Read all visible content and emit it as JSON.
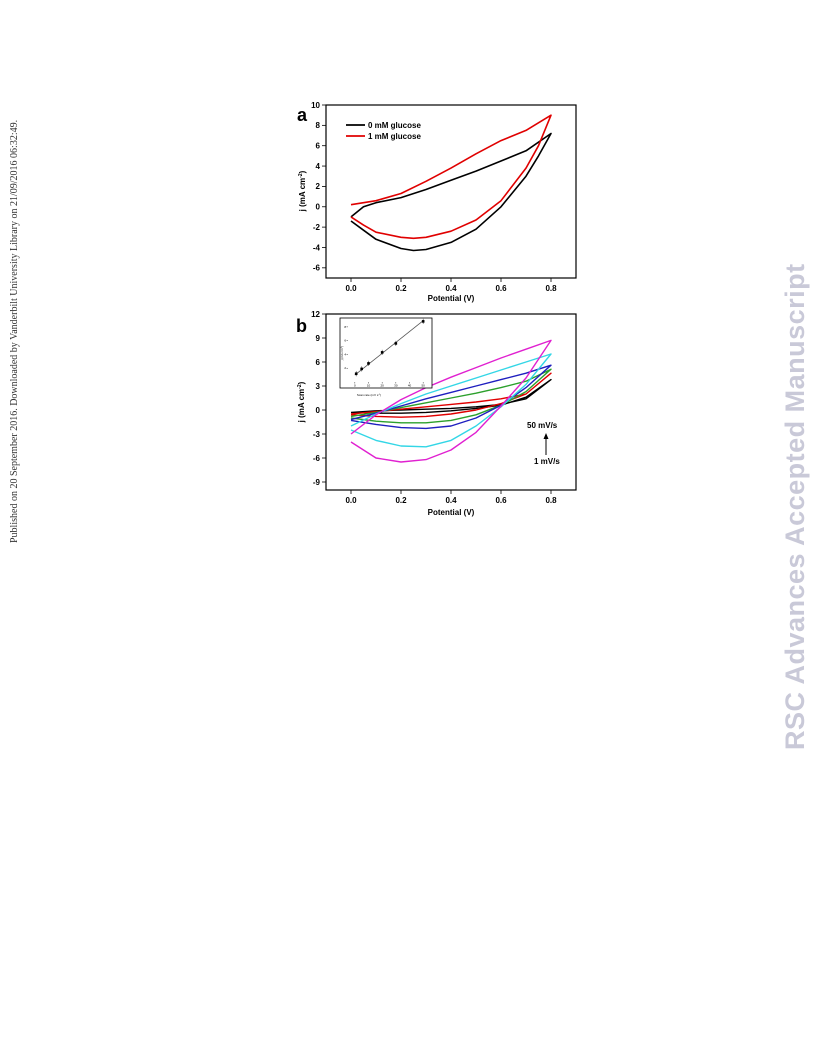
{
  "side_note": "Published on 20 September 2016. Downloaded by Vanderbilt University Library on 21/09/2016 06:32:49.",
  "watermark": "RSC Advances Accepted Manuscript",
  "chart_data": [
    {
      "panel": "a",
      "type": "line",
      "xlabel": "Potential (V)",
      "ylabel": "j (mA cm",
      "ylabel_sup": "-2",
      "ylabel_end": ")",
      "xlim": [
        -0.1,
        0.9
      ],
      "ylim": [
        -7,
        10
      ],
      "xticks": [
        "0.0",
        "0.2",
        "0.4",
        "0.6",
        "0.8"
      ],
      "xtick_values": [
        0.0,
        0.2,
        0.4,
        0.6,
        0.8
      ],
      "yticks": [
        "10",
        "8",
        "6",
        "4",
        "2",
        "0",
        "-2",
        "-4",
        "-6"
      ],
      "ytick_values": [
        10,
        8,
        6,
        4,
        2,
        0,
        -2,
        -4,
        -6
      ],
      "legend_position": "top-left",
      "series": [
        {
          "name": "0 mM glucose",
          "color": "#000000",
          "x": [
            0.0,
            0.05,
            0.1,
            0.2,
            0.3,
            0.4,
            0.5,
            0.6,
            0.7,
            0.8,
            0.8,
            0.75,
            0.7,
            0.6,
            0.5,
            0.4,
            0.3,
            0.25,
            0.2,
            0.1,
            0.05,
            0.0
          ],
          "y": [
            -1.0,
            0.0,
            0.4,
            0.9,
            1.7,
            2.6,
            3.5,
            4.5,
            5.5,
            7.2,
            7.2,
            5.0,
            3.0,
            0.0,
            -2.2,
            -3.5,
            -4.2,
            -4.3,
            -4.1,
            -3.2,
            -2.3,
            -1.4
          ]
        },
        {
          "name": "1 mM glucose",
          "color": "#e00000",
          "x": [
            0.0,
            0.05,
            0.1,
            0.2,
            0.3,
            0.4,
            0.5,
            0.6,
            0.7,
            0.8,
            0.8,
            0.75,
            0.7,
            0.6,
            0.5,
            0.4,
            0.3,
            0.25,
            0.2,
            0.1,
            0.05,
            0.0
          ],
          "y": [
            0.2,
            0.4,
            0.6,
            1.3,
            2.5,
            3.8,
            5.2,
            6.5,
            7.5,
            9.0,
            9.0,
            6.0,
            3.8,
            0.6,
            -1.3,
            -2.4,
            -3.0,
            -3.1,
            -3.0,
            -2.5,
            -1.8,
            -1.0
          ]
        }
      ]
    },
    {
      "panel": "b",
      "type": "line",
      "xlabel": "Potential (V)",
      "ylabel": "j (mA cm",
      "ylabel_sup": "-2",
      "ylabel_end": ")",
      "xlim": [
        -0.1,
        0.9
      ],
      "ylim": [
        -10,
        12
      ],
      "xticks": [
        "0.0",
        "0.2",
        "0.4",
        "0.6",
        "0.8"
      ],
      "xtick_values": [
        0.0,
        0.2,
        0.4,
        0.6,
        0.8
      ],
      "yticks": [
        "12",
        "9",
        "6",
        "3",
        "0",
        "-3",
        "-6",
        "-9"
      ],
      "ytick_values": [
        12,
        9,
        6,
        3,
        0,
        -3,
        -6,
        -9
      ],
      "annotation_top": "50 mV/s",
      "annotation_bottom": "1 mV/s",
      "series": [
        {
          "color": "#000000",
          "x": [
            0.0,
            0.1,
            0.2,
            0.3,
            0.4,
            0.5,
            0.6,
            0.7,
            0.8,
            0.8,
            0.7,
            0.6,
            0.5,
            0.4,
            0.3,
            0.2,
            0.1,
            0.0
          ],
          "y": [
            -0.3,
            -0.1,
            0.0,
            0.1,
            0.2,
            0.4,
            0.7,
            1.4,
            3.8,
            3.8,
            1.6,
            0.6,
            0.2,
            -0.1,
            -0.3,
            -0.4,
            -0.4,
            -0.3
          ]
        },
        {
          "color": "#e00000",
          "x": [
            0.0,
            0.1,
            0.2,
            0.3,
            0.4,
            0.5,
            0.6,
            0.7,
            0.8,
            0.8,
            0.7,
            0.6,
            0.5,
            0.4,
            0.3,
            0.2,
            0.1,
            0.0
          ],
          "y": [
            -0.5,
            -0.2,
            0.1,
            0.4,
            0.7,
            1.0,
            1.4,
            2.0,
            4.6,
            4.6,
            2.0,
            0.8,
            0.0,
            -0.5,
            -0.8,
            -0.9,
            -0.8,
            -0.6
          ]
        },
        {
          "color": "#2ca02c",
          "x": [
            0.0,
            0.1,
            0.2,
            0.3,
            0.4,
            0.5,
            0.6,
            0.7,
            0.8,
            0.8,
            0.7,
            0.6,
            0.5,
            0.4,
            0.3,
            0.2,
            0.1,
            0.0
          ],
          "y": [
            -0.8,
            -0.3,
            0.3,
            0.9,
            1.5,
            2.1,
            2.8,
            3.6,
            5.1,
            5.1,
            2.3,
            0.6,
            -0.6,
            -1.3,
            -1.6,
            -1.6,
            -1.4,
            -1.0
          ]
        },
        {
          "color": "#1f1fbf",
          "x": [
            0.0,
            0.1,
            0.2,
            0.3,
            0.4,
            0.5,
            0.6,
            0.7,
            0.8,
            0.8,
            0.7,
            0.6,
            0.5,
            0.4,
            0.3,
            0.2,
            0.1,
            0.0
          ],
          "y": [
            -1.2,
            -0.4,
            0.5,
            1.4,
            2.2,
            3.0,
            3.8,
            4.6,
            5.6,
            5.6,
            2.8,
            0.6,
            -1.0,
            -2.0,
            -2.3,
            -2.2,
            -1.8,
            -1.3
          ]
        },
        {
          "color": "#33d6e6",
          "x": [
            0.0,
            0.1,
            0.2,
            0.3,
            0.4,
            0.5,
            0.6,
            0.7,
            0.8,
            0.8,
            0.7,
            0.6,
            0.5,
            0.4,
            0.3,
            0.2,
            0.1,
            0.0
          ],
          "y": [
            -2.0,
            -0.5,
            0.8,
            2.0,
            3.0,
            4.0,
            5.0,
            6.0,
            7.0,
            7.0,
            3.2,
            0.4,
            -2.0,
            -3.8,
            -4.6,
            -4.5,
            -3.8,
            -2.5
          ]
        },
        {
          "color": "#e020d0",
          "x": [
            0.0,
            0.1,
            0.2,
            0.3,
            0.4,
            0.5,
            0.6,
            0.7,
            0.8,
            0.8,
            0.7,
            0.6,
            0.5,
            0.4,
            0.3,
            0.2,
            0.1,
            0.0
          ],
          "y": [
            -3.0,
            -0.6,
            1.3,
            2.8,
            4.1,
            5.3,
            6.5,
            7.6,
            8.7,
            8.7,
            4.0,
            0.5,
            -2.8,
            -5.0,
            -6.2,
            -6.5,
            -6.0,
            -4.0
          ]
        }
      ],
      "inset": {
        "xlabel": "Scan rate (mV s",
        "xlabel_sup": "-1",
        "xlabel_end": ")",
        "ylabel": "j (mA cm",
        "ylabel_sup": "-2",
        "ylabel_end": ")",
        "xlim": [
          -5,
          55
        ],
        "ylim": [
          0,
          9
        ],
        "xticks": [
          "0",
          "10",
          "20",
          "30",
          "40",
          "50"
        ],
        "xtick_values": [
          0,
          10,
          20,
          30,
          40,
          50
        ],
        "yticks": [
          "2",
          "4",
          "6",
          "8"
        ],
        "ytick_values": [
          2,
          4,
          6,
          8
        ],
        "points_x": [
          1,
          5,
          10,
          20,
          30,
          50
        ],
        "points_y": [
          1.2,
          1.9,
          2.7,
          4.3,
          5.6,
          8.8
        ],
        "fit_x": [
          0,
          50
        ],
        "fit_y": [
          1.0,
          8.9
        ]
      }
    }
  ]
}
